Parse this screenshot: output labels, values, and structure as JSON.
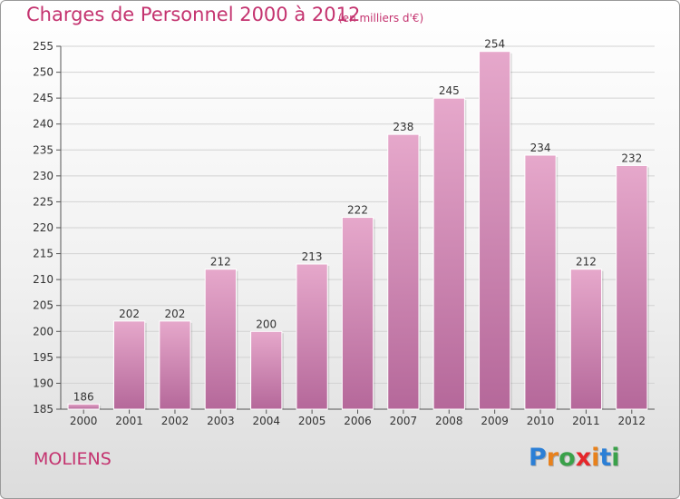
{
  "header": {
    "title": "Charges de Personnel 2000 à 2012",
    "subtitle": "(en milliers d'€)"
  },
  "footer": {
    "place": "MOLIENS",
    "logo_letters": [
      "P",
      "r",
      "o",
      "x",
      "i",
      "t",
      "i"
    ],
    "logo_colors": [
      "#2b7fd6",
      "#e8811c",
      "#3aa14a",
      "#e5262b",
      "#e8811c",
      "#2b7fd6",
      "#3aa14a"
    ]
  },
  "chart_data": {
    "type": "bar",
    "categories": [
      "2000",
      "2001",
      "2002",
      "2003",
      "2004",
      "2005",
      "2006",
      "2007",
      "2008",
      "2009",
      "2010",
      "2011",
      "2012"
    ],
    "values": [
      186,
      202,
      202,
      212,
      200,
      213,
      222,
      238,
      245,
      254,
      234,
      212,
      232
    ],
    "value_labels": [
      "186",
      "202",
      "202",
      "212",
      "200",
      "213",
      "222",
      "238",
      "245",
      "254",
      "234",
      "212",
      "232"
    ],
    "title": "Charges de Personnel 2000 à 2012",
    "xlabel": "",
    "ylabel": "",
    "ylim": [
      185,
      255
    ],
    "yticks": [
      185,
      190,
      195,
      200,
      205,
      210,
      215,
      220,
      225,
      230,
      235,
      240,
      245,
      250,
      255
    ],
    "ytick_labels": [
      "185",
      "190",
      "195",
      "200",
      "205",
      "210",
      "215",
      "220",
      "225",
      "230",
      "235",
      "240",
      "245",
      "250",
      "255"
    ],
    "grid": true,
    "bar_color": "#d88cb5",
    "legend": "none"
  }
}
